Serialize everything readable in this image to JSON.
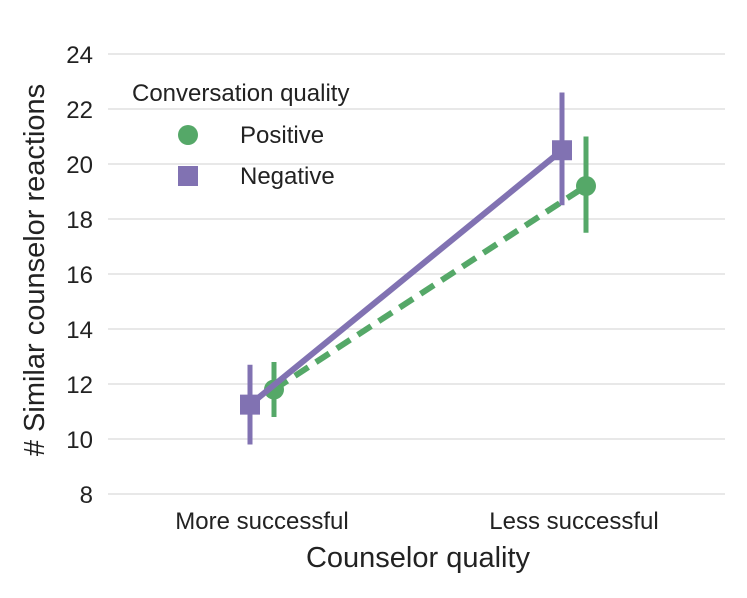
{
  "chart_data": {
    "type": "pointplot",
    "title": "",
    "xlabel": "Counselor quality",
    "ylabel": "# Similar counselor reactions",
    "categories": [
      "More successful",
      "Less successful"
    ],
    "ylim": [
      8,
      24
    ],
    "yticks": [
      8,
      10,
      12,
      14,
      16,
      18,
      20,
      22,
      24
    ],
    "grid": "horizontal",
    "legend": {
      "title": "Conversation quality",
      "placement": "top-left",
      "entries": [
        "Positive",
        "Negative"
      ]
    },
    "series": [
      {
        "name": "Positive",
        "marker": "circle",
        "linestyle": "dashed",
        "color": "#55a868",
        "values": [
          11.8,
          19.2
        ],
        "error_low": [
          10.8,
          17.5
        ],
        "error_high": [
          12.8,
          21.0
        ]
      },
      {
        "name": "Negative",
        "marker": "square",
        "linestyle": "solid",
        "color": "#8172b2",
        "values": [
          11.25,
          20.5
        ],
        "error_low": [
          9.8,
          18.5
        ],
        "error_high": [
          12.7,
          22.6
        ]
      }
    ]
  }
}
